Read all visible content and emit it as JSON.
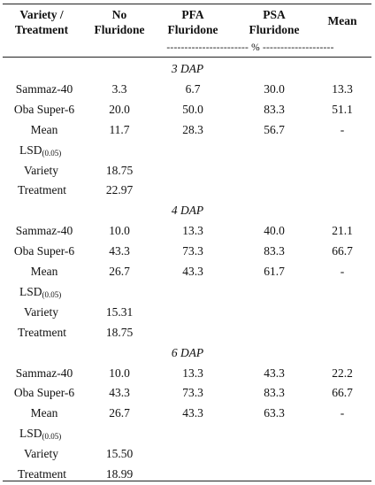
{
  "header": {
    "col_variety": [
      "Variety /",
      "Treatment"
    ],
    "col_no": [
      "No",
      "Fluridone"
    ],
    "col_pfa": [
      "PFA",
      "Fluridone"
    ],
    "col_psa": [
      "PSA",
      "Fluridone"
    ],
    "col_mean": "Mean",
    "unit_line": "----------------------- % --------------------"
  },
  "sections": [
    {
      "title": "3 DAP",
      "rows": [
        {
          "label": "Sammaz-40",
          "no": "3.3",
          "pfa": "6.7",
          "psa": "30.0",
          "mean": "13.3"
        },
        {
          "label": "Oba Super-6",
          "no": "20.0",
          "pfa": "50.0",
          "psa": "83.3",
          "mean": "51.1"
        },
        {
          "label": "Mean",
          "no": "11.7",
          "pfa": "28.3",
          "psa": "56.7",
          "mean": "-"
        }
      ],
      "lsd_label": "LSD",
      "lsd_sub": "(0.05)",
      "variety_label": "Variety",
      "variety_value": "18.75",
      "treatment_label": "Treatment",
      "treatment_value": "22.97"
    },
    {
      "title": "4 DAP",
      "rows": [
        {
          "label": "Sammaz-40",
          "no": "10.0",
          "pfa": "13.3",
          "psa": "40.0",
          "mean": "21.1"
        },
        {
          "label": "Oba Super-6",
          "no": "43.3",
          "pfa": "73.3",
          "psa": "83.3",
          "mean": "66.7"
        },
        {
          "label": "Mean",
          "no": "26.7",
          "pfa": "43.3",
          "psa": "61.7",
          "mean": "-"
        }
      ],
      "lsd_label": "LSD",
      "lsd_sub": "(0.05)",
      "variety_label": "Variety",
      "variety_value": "15.31",
      "treatment_label": "Treatment",
      "treatment_value": "18.75"
    },
    {
      "title": "6 DAP",
      "rows": [
        {
          "label": "Sammaz-40",
          "no": "10.0",
          "pfa": "13.3",
          "psa": "43.3",
          "mean": "22.2"
        },
        {
          "label": "Oba Super-6",
          "no": "43.3",
          "pfa": "73.3",
          "psa": "83.3",
          "mean": "66.7"
        },
        {
          "label": "Mean",
          "no": "26.7",
          "pfa": "43.3",
          "psa": "63.3",
          "mean": "-"
        }
      ],
      "lsd_label": "LSD",
      "lsd_sub": "(0.05)",
      "variety_label": "Variety",
      "variety_value": "15.50",
      "treatment_label": "Treatment",
      "treatment_value": "18.99"
    }
  ]
}
